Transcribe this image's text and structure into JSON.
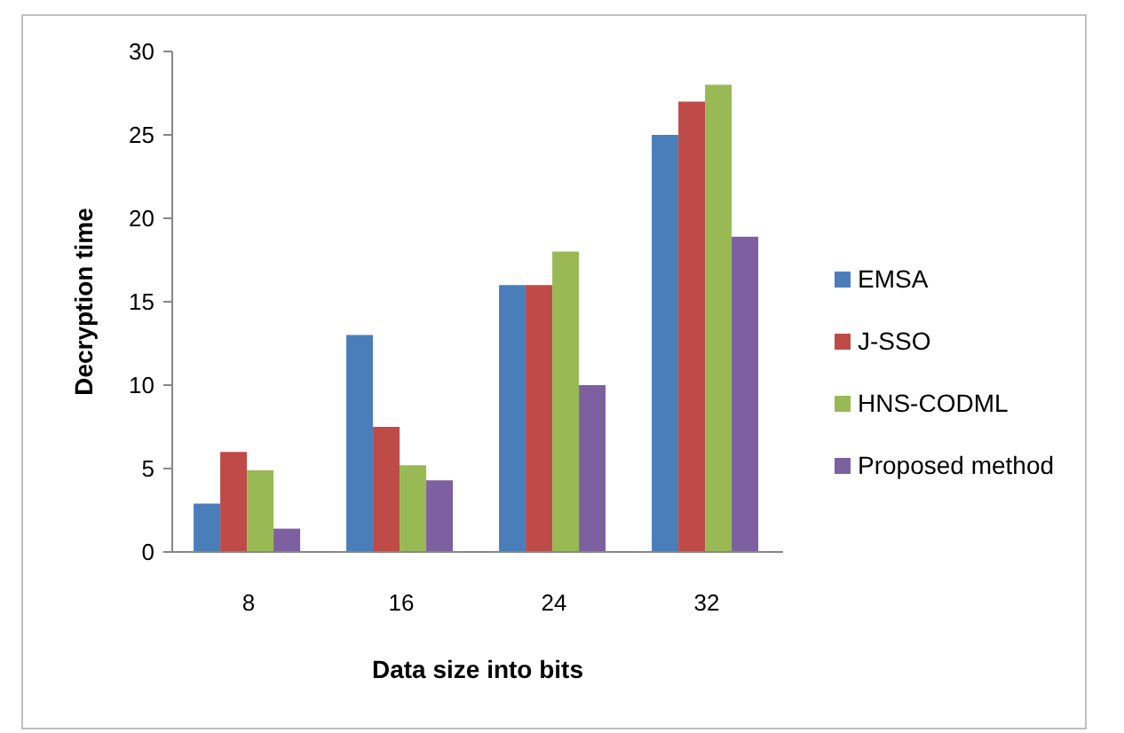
{
  "chart_data": {
    "type": "bar",
    "xlabel": "Data size into bits",
    "ylabel": "Decryption time",
    "categories": [
      "8",
      "16",
      "24",
      "32"
    ],
    "series": [
      {
        "name": "EMSA",
        "color": "#4a7ebb",
        "values": [
          2.9,
          13,
          16,
          25
        ]
      },
      {
        "name": "J-SSO",
        "color": "#be4b48",
        "values": [
          6,
          7.5,
          16,
          27
        ]
      },
      {
        "name": "HNS-CODML",
        "color": "#98b954",
        "values": [
          4.9,
          5.2,
          18,
          28
        ]
      },
      {
        "name": "Proposed method",
        "color": "#7d60a0",
        "values": [
          1.4,
          4.3,
          10,
          18.9
        ]
      }
    ],
    "ylim": [
      0,
      30
    ],
    "yticks": [
      0,
      5,
      10,
      15,
      20,
      25,
      30
    ],
    "legend": "right"
  }
}
